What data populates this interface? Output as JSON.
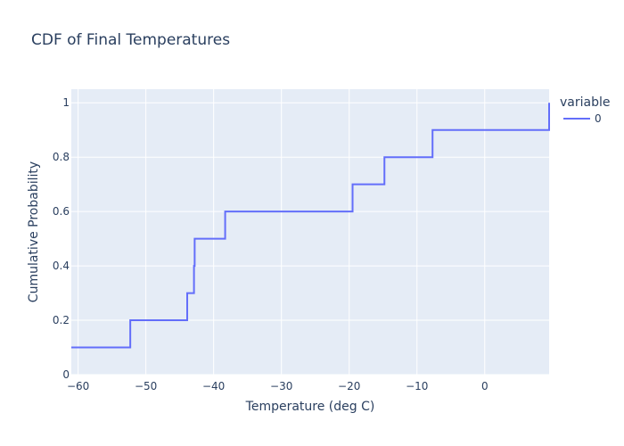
{
  "chart_data": {
    "type": "line",
    "line_shape": "hv",
    "title": "CDF of Final Temperatures",
    "xlabel": "Temperature (deg C)",
    "ylabel": "Cumulative Probability",
    "xlim": [
      -61,
      9.5
    ],
    "ylim": [
      0,
      1.05
    ],
    "x_ticks": [
      -60,
      -50,
      -40,
      -30,
      -20,
      -10,
      0
    ],
    "x_tick_labels": [
      "−60",
      "−50",
      "−40",
      "−30",
      "−20",
      "−10",
      "0"
    ],
    "y_ticks": [
      0,
      0.2,
      0.4,
      0.6,
      0.8,
      1
    ],
    "y_tick_labels": [
      "0",
      "0.2",
      "0.4",
      "0.6",
      "0.8",
      "1"
    ],
    "grid": true,
    "legend_title": "variable",
    "legend_position": "top-right",
    "series": [
      {
        "name": "0",
        "color": "#636efa",
        "x": [
          -61,
          -52.3,
          -43.9,
          -42.9,
          -42.8,
          -38.3,
          -19.5,
          -14.8,
          -7.7,
          9.5
        ],
        "y": [
          0.1,
          0.2,
          0.3,
          0.4,
          0.5,
          0.6,
          0.7,
          0.8,
          0.9,
          1.0
        ]
      }
    ]
  },
  "colors": {
    "plot_background": "#e5ecf6",
    "grid": "#ffffff",
    "text": "#2a3f5f"
  }
}
